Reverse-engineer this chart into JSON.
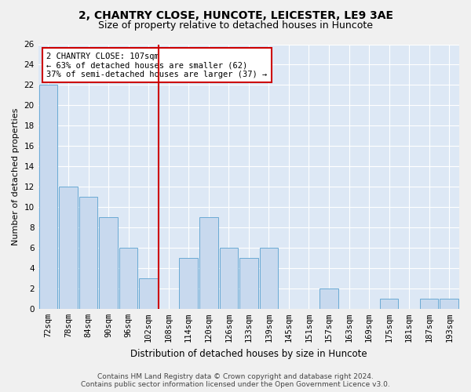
{
  "title": "2, CHANTRY CLOSE, HUNCOTE, LEICESTER, LE9 3AE",
  "subtitle": "Size of property relative to detached houses in Huncote",
  "xlabel": "Distribution of detached houses by size in Huncote",
  "ylabel": "Number of detached properties",
  "categories": [
    "72sqm",
    "78sqm",
    "84sqm",
    "90sqm",
    "96sqm",
    "102sqm",
    "108sqm",
    "114sqm",
    "120sqm",
    "126sqm",
    "133sqm",
    "139sqm",
    "145sqm",
    "151sqm",
    "157sqm",
    "163sqm",
    "169sqm",
    "175sqm",
    "181sqm",
    "187sqm",
    "193sqm"
  ],
  "values": [
    22,
    12,
    11,
    9,
    6,
    3,
    0,
    5,
    9,
    6,
    5,
    6,
    0,
    0,
    2,
    0,
    0,
    1,
    0,
    1,
    1
  ],
  "bar_color": "#c8d9ee",
  "bar_edge_color": "#6aaad4",
  "marker_line_color": "#cc0000",
  "annotation_line1": "2 CHANTRY CLOSE: 107sqm",
  "annotation_line2": "← 63% of detached houses are smaller (62)",
  "annotation_line3": "37% of semi-detached houses are larger (37) →",
  "annotation_box_color": "#ffffff",
  "annotation_box_edge": "#cc0000",
  "ylim": [
    0,
    26
  ],
  "yticks": [
    0,
    2,
    4,
    6,
    8,
    10,
    12,
    14,
    16,
    18,
    20,
    22,
    24,
    26
  ],
  "background_color": "#dde8f5",
  "fig_background_color": "#f0f0f0",
  "footer_line1": "Contains HM Land Registry data © Crown copyright and database right 2024.",
  "footer_line2": "Contains public sector information licensed under the Open Government Licence v3.0.",
  "title_fontsize": 10,
  "subtitle_fontsize": 9,
  "xlabel_fontsize": 8.5,
  "ylabel_fontsize": 8,
  "tick_fontsize": 7.5,
  "footer_fontsize": 6.5,
  "annotation_fontsize": 7.5
}
